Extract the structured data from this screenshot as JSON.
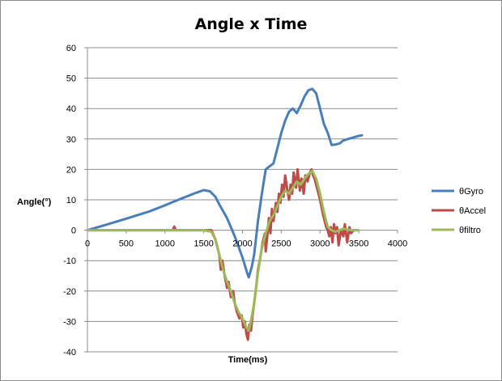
{
  "chart_data": {
    "type": "line",
    "title": "Angle x Time",
    "xlabel": "Time(ms)",
    "ylabel": "Angle(°)",
    "xlim": [
      0,
      4000
    ],
    "ylim": [
      -40,
      60
    ],
    "xticks": [
      0,
      500,
      1000,
      1500,
      2000,
      2500,
      3000,
      3500,
      4000
    ],
    "yticks": [
      -40,
      -30,
      -20,
      -10,
      0,
      10,
      20,
      30,
      40,
      50,
      60
    ],
    "grid": "horizontal",
    "legend": "right",
    "series": [
      {
        "name": "θGyro",
        "color": "#4a7ebb",
        "points": [
          [
            0,
            0
          ],
          [
            200,
            1.5
          ],
          [
            500,
            3.8
          ],
          [
            800,
            6.2
          ],
          [
            1000,
            8.2
          ],
          [
            1200,
            10.3
          ],
          [
            1400,
            12.3
          ],
          [
            1500,
            13.2
          ],
          [
            1580,
            12.8
          ],
          [
            1650,
            11
          ],
          [
            1700,
            8.5
          ],
          [
            1800,
            4
          ],
          [
            1900,
            -2
          ],
          [
            2000,
            -9
          ],
          [
            2060,
            -14
          ],
          [
            2080,
            -15.5
          ],
          [
            2120,
            -12
          ],
          [
            2150,
            -8
          ],
          [
            2200,
            3
          ],
          [
            2250,
            12
          ],
          [
            2300,
            20
          ],
          [
            2350,
            21
          ],
          [
            2400,
            22
          ],
          [
            2450,
            27
          ],
          [
            2500,
            32
          ],
          [
            2550,
            36
          ],
          [
            2600,
            39
          ],
          [
            2650,
            40
          ],
          [
            2700,
            38.5
          ],
          [
            2750,
            41
          ],
          [
            2800,
            44
          ],
          [
            2850,
            46
          ],
          [
            2900,
            46.5
          ],
          [
            2950,
            45
          ],
          [
            3000,
            40
          ],
          [
            3050,
            35
          ],
          [
            3100,
            32
          ],
          [
            3150,
            28
          ],
          [
            3200,
            28.2
          ],
          [
            3250,
            28.5
          ],
          [
            3300,
            29.5
          ],
          [
            3400,
            30.3
          ],
          [
            3500,
            31
          ],
          [
            3540,
            31.2
          ]
        ]
      },
      {
        "name": "θAccel",
        "color": "#be4b48",
        "points": [
          [
            0,
            0
          ],
          [
            500,
            0
          ],
          [
            1000,
            0
          ],
          [
            1100,
            0
          ],
          [
            1120,
            1.2
          ],
          [
            1140,
            0
          ],
          [
            1500,
            0
          ],
          [
            1600,
            0
          ],
          [
            1650,
            -3
          ],
          [
            1700,
            -8
          ],
          [
            1720,
            -13
          ],
          [
            1740,
            -10
          ],
          [
            1770,
            -15
          ],
          [
            1800,
            -19
          ],
          [
            1820,
            -17
          ],
          [
            1850,
            -22
          ],
          [
            1880,
            -20
          ],
          [
            1900,
            -24
          ],
          [
            1930,
            -27
          ],
          [
            1960,
            -29
          ],
          [
            1990,
            -28
          ],
          [
            2010,
            -32
          ],
          [
            2030,
            -30
          ],
          [
            2050,
            -34
          ],
          [
            2070,
            -36
          ],
          [
            2090,
            -31
          ],
          [
            2110,
            -33
          ],
          [
            2130,
            -28
          ],
          [
            2150,
            -24
          ],
          [
            2180,
            -18
          ],
          [
            2200,
            -13
          ],
          [
            2230,
            -9
          ],
          [
            2260,
            -4
          ],
          [
            2290,
            -1
          ],
          [
            2300,
            -7
          ],
          [
            2320,
            -2
          ],
          [
            2340,
            4
          ],
          [
            2360,
            -1
          ],
          [
            2380,
            7
          ],
          [
            2400,
            3
          ],
          [
            2430,
            9
          ],
          [
            2450,
            6
          ],
          [
            2470,
            12
          ],
          [
            2490,
            9
          ],
          [
            2510,
            15
          ],
          [
            2530,
            11
          ],
          [
            2550,
            18
          ],
          [
            2580,
            13
          ],
          [
            2600,
            10
          ],
          [
            2620,
            15
          ],
          [
            2640,
            12
          ],
          [
            2660,
            19
          ],
          [
            2690,
            14
          ],
          [
            2710,
            20
          ],
          [
            2740,
            13
          ],
          [
            2760,
            17
          ],
          [
            2790,
            12
          ],
          [
            2810,
            18
          ],
          [
            2840,
            16
          ],
          [
            2870,
            19
          ],
          [
            2890,
            20
          ],
          [
            2910,
            18
          ],
          [
            2930,
            17
          ],
          [
            2960,
            14
          ],
          [
            3000,
            10
          ],
          [
            3040,
            5
          ],
          [
            3080,
            1
          ],
          [
            3100,
            0
          ],
          [
            3120,
            -2
          ],
          [
            3140,
            1
          ],
          [
            3160,
            -4
          ],
          [
            3180,
            2
          ],
          [
            3200,
            -1
          ],
          [
            3220,
            1
          ],
          [
            3240,
            -5
          ],
          [
            3270,
            0
          ],
          [
            3300,
            -2
          ],
          [
            3320,
            2
          ],
          [
            3350,
            -4
          ],
          [
            3380,
            1
          ],
          [
            3400,
            -1
          ],
          [
            3430,
            0
          ],
          [
            3470,
            0
          ]
        ]
      },
      {
        "name": "θfiltro",
        "color": "#9bbb59",
        "points": [
          [
            0,
            0
          ],
          [
            500,
            0
          ],
          [
            1000,
            0
          ],
          [
            1500,
            0
          ],
          [
            1600,
            -0.5
          ],
          [
            1650,
            -3
          ],
          [
            1700,
            -8
          ],
          [
            1750,
            -13
          ],
          [
            1800,
            -17
          ],
          [
            1850,
            -20
          ],
          [
            1900,
            -24
          ],
          [
            1950,
            -27
          ],
          [
            2000,
            -29
          ],
          [
            2050,
            -32
          ],
          [
            2080,
            -33
          ],
          [
            2100,
            -31
          ],
          [
            2150,
            -24
          ],
          [
            2200,
            -14
          ],
          [
            2250,
            -6
          ],
          [
            2300,
            -1
          ],
          [
            2350,
            3
          ],
          [
            2400,
            5
          ],
          [
            2450,
            8
          ],
          [
            2500,
            11
          ],
          [
            2550,
            13
          ],
          [
            2600,
            12
          ],
          [
            2650,
            14
          ],
          [
            2700,
            16
          ],
          [
            2750,
            15
          ],
          [
            2800,
            17
          ],
          [
            2850,
            18.5
          ],
          [
            2900,
            19.5
          ],
          [
            2950,
            17
          ],
          [
            3000,
            12
          ],
          [
            3050,
            6
          ],
          [
            3100,
            1
          ],
          [
            3150,
            0
          ],
          [
            3200,
            -0.5
          ],
          [
            3250,
            0
          ],
          [
            3300,
            0.5
          ],
          [
            3400,
            0
          ],
          [
            3500,
            0
          ]
        ]
      }
    ]
  }
}
